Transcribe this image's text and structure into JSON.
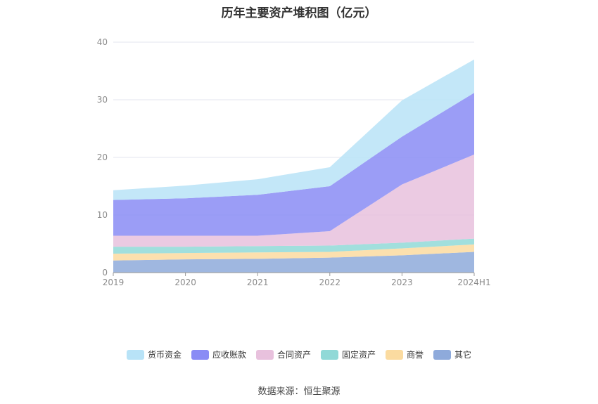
{
  "chart_data": {
    "type": "area",
    "stacked": true,
    "title": "历年主要资产堆积图（亿元）",
    "categories": [
      "2019",
      "2020",
      "2021",
      "2022",
      "2023",
      "2024H1"
    ],
    "ylim": [
      0,
      40
    ],
    "yticks": [
      0,
      10,
      20,
      30,
      40
    ],
    "grid": true,
    "legend_position": "bottom",
    "series": [
      {
        "name": "其它",
        "color": "#8eaadb",
        "values": [
          2.1,
          2.3,
          2.4,
          2.6,
          3.0,
          3.6
        ]
      },
      {
        "name": "商誉",
        "color": "#fbdba0",
        "values": [
          1.2,
          1.1,
          1.1,
          1.0,
          1.2,
          1.3
        ]
      },
      {
        "name": "固定资产",
        "color": "#91d9d7",
        "values": [
          1.2,
          1.1,
          1.1,
          1.1,
          1.0,
          1.0
        ]
      },
      {
        "name": "合同资产",
        "color": "#e8c1dd",
        "values": [
          1.9,
          1.9,
          1.8,
          2.5,
          10.1,
          14.6
        ]
      },
      {
        "name": "应收账款",
        "color": "#8a8cf5",
        "values": [
          6.2,
          6.5,
          7.1,
          7.8,
          8.3,
          10.7
        ]
      },
      {
        "name": "货币资金",
        "color": "#b8e3f7",
        "values": [
          1.7,
          2.2,
          2.7,
          3.3,
          6.3,
          5.8
        ]
      }
    ]
  },
  "legend_order": [
    "货币资金",
    "应收账款",
    "合同资产",
    "固定资产",
    "商誉",
    "其它"
  ],
  "source_text": "数据来源：恒生聚源"
}
